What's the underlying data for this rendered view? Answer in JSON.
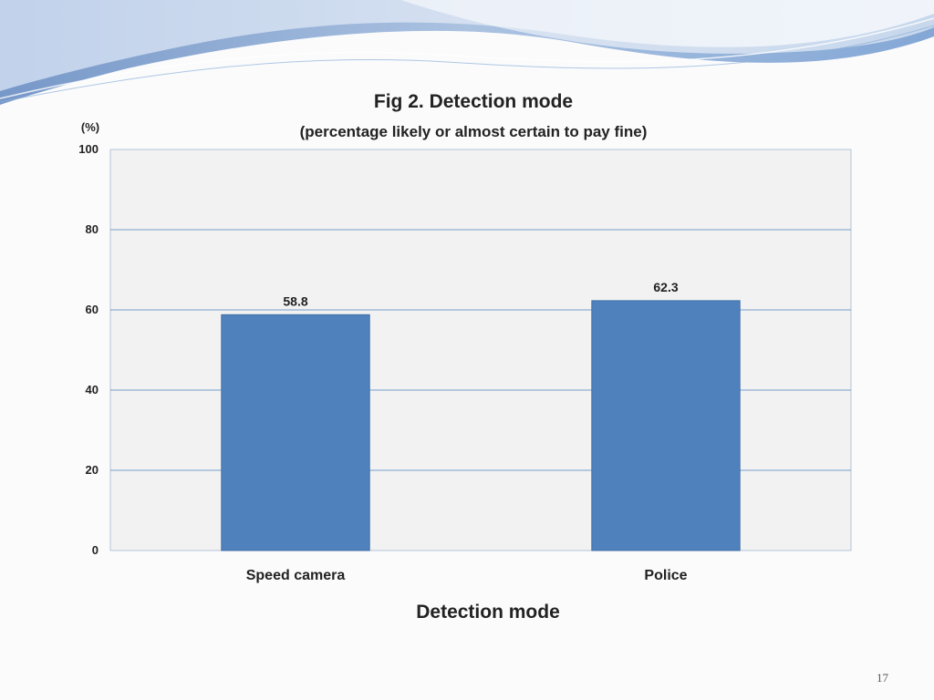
{
  "slide": {
    "page_number": "17",
    "accent_color": "#8fb0d8"
  },
  "chart_data": {
    "type": "bar",
    "title": "Fig 2. Detection mode",
    "subtitle": "(percentage likely or almost certain to pay fine)",
    "ylabel": "(%)",
    "xlabel": "Detection mode",
    "categories": [
      "Speed camera",
      "Police"
    ],
    "values": [
      58.8,
      62.3
    ],
    "data_labels": [
      "58.8",
      "62.3"
    ],
    "ylim": [
      0,
      100
    ],
    "yticks": [
      "0",
      "20",
      "40",
      "60",
      "80",
      "100"
    ],
    "grid": true,
    "bar_color": "#4f81bd",
    "plot_background": "#f2f2f2",
    "gridline_color": "#4f81bd"
  }
}
